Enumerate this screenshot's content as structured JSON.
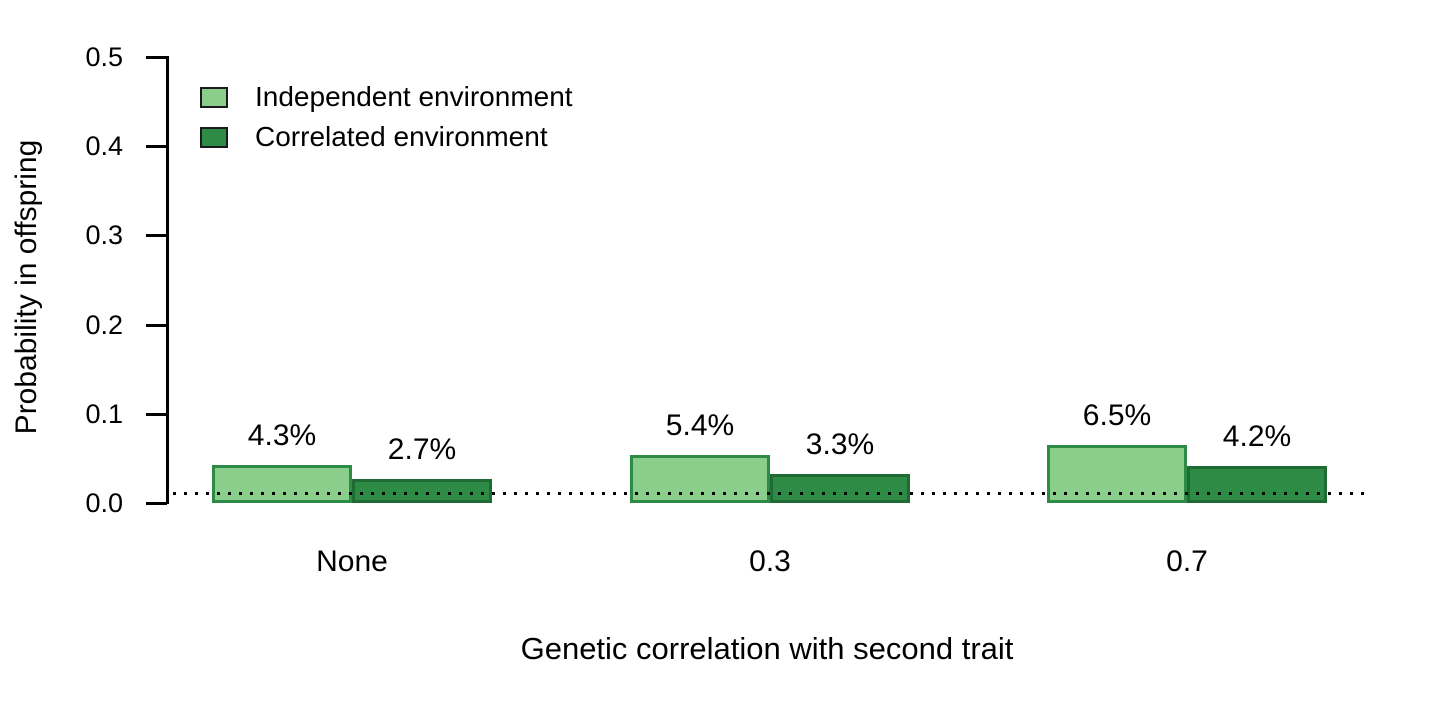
{
  "figure": {
    "background_color": "#ffffff",
    "text_color": "#000000"
  },
  "chart_data": {
    "type": "bar",
    "title": "",
    "xlabel": "Genetic correlation with second trait",
    "ylabel": "Probability in offspring",
    "categories": [
      "None",
      "0.3",
      "0.7"
    ],
    "series": [
      {
        "name": "Independent environment",
        "values": [
          0.043,
          0.054,
          0.065
        ],
        "value_labels": [
          "4.3%",
          "5.4%",
          "6.5%"
        ],
        "fill_color": "#8BCD8B",
        "border_color": "#2E8B45"
      },
      {
        "name": "Correlated environment",
        "values": [
          0.027,
          0.033,
          0.042
        ],
        "value_labels": [
          "2.7%",
          "3.3%",
          "4.2%"
        ],
        "fill_color": "#2E8B45",
        "border_color": "#1F6B33"
      }
    ],
    "ylim": [
      0,
      0.5
    ],
    "yticks": [
      {
        "value": 0.0,
        "label": "0.0"
      },
      {
        "value": 0.1,
        "label": "0.1"
      },
      {
        "value": 0.2,
        "label": "0.2"
      },
      {
        "value": 0.3,
        "label": "0.3"
      },
      {
        "value": 0.4,
        "label": "0.4"
      },
      {
        "value": 0.5,
        "label": "0.5"
      }
    ],
    "baseline": {
      "value": 0.01,
      "style": "dotted",
      "color": "#000000"
    },
    "legend_position": "top-left",
    "grid": false
  }
}
